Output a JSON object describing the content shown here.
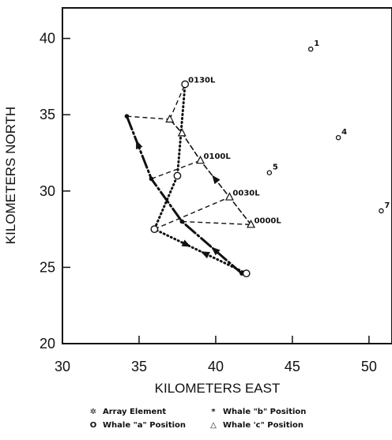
{
  "chart_data": {
    "type": "scatter",
    "xlabel": "KILOMETERS EAST",
    "ylabel": "KILOMETERS NORTH",
    "xlim": [
      30,
      51.5
    ],
    "ylim": [
      20,
      42
    ],
    "x_ticks": [
      30,
      35,
      40,
      45,
      50
    ],
    "y_ticks": [
      20,
      25,
      30,
      35,
      40
    ],
    "array_elements": [
      {
        "label": "1",
        "x": 46.2,
        "y": 39.3
      },
      {
        "label": "4",
        "x": 48.0,
        "y": 33.5
      },
      {
        "label": "5",
        "x": 43.5,
        "y": 31.2
      },
      {
        "label": "7",
        "x": 50.8,
        "y": 28.7
      }
    ],
    "whale_a": [
      {
        "x": 42.0,
        "y": 24.6
      },
      {
        "x": 36.0,
        "y": 27.5
      },
      {
        "x": 37.5,
        "y": 31.0
      },
      {
        "x": 38.0,
        "y": 37.0
      }
    ],
    "whale_b": [
      {
        "x": 41.7,
        "y": 24.6
      },
      {
        "x": 37.8,
        "y": 28.0
      },
      {
        "x": 35.8,
        "y": 30.8
      },
      {
        "x": 34.2,
        "y": 34.9
      }
    ],
    "whale_c": [
      {
        "x": 42.3,
        "y": 27.8
      },
      {
        "x": 40.9,
        "y": 29.6
      },
      {
        "x": 39.0,
        "y": 32.0
      },
      {
        "x": 37.8,
        "y": 33.8
      },
      {
        "x": 37.0,
        "y": 34.7
      }
    ],
    "time_labels": [
      {
        "text": "0130L",
        "x": 38.0,
        "y": 37.0
      },
      {
        "text": "0100L",
        "x": 39.0,
        "y": 32.0
      },
      {
        "text": "0030L",
        "x": 40.9,
        "y": 29.6
      },
      {
        "text": "0000L",
        "x": 42.3,
        "y": 27.8
      }
    ],
    "legend": [
      {
        "symbol": "✲",
        "label": "Array Element"
      },
      {
        "symbol": "*",
        "label": "Whale \"b\" Position"
      },
      {
        "symbol": "O",
        "label": "Whale \"a\" Position"
      },
      {
        "symbol": "△",
        "label": "Whale 'c\" Position"
      }
    ]
  }
}
